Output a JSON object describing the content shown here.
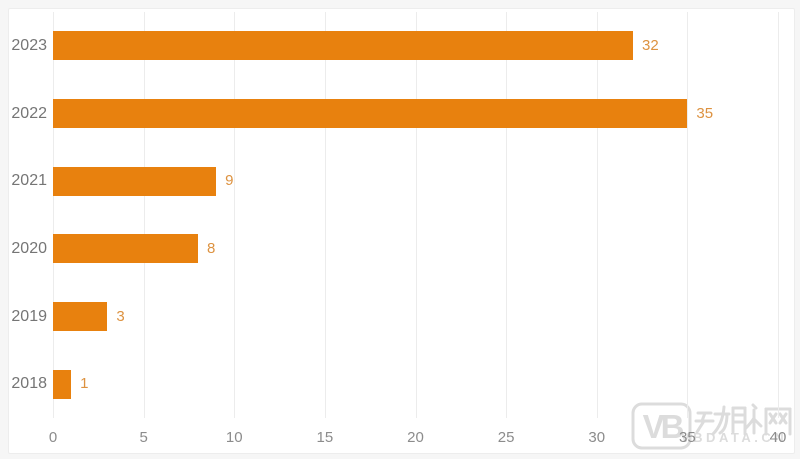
{
  "chart_data": {
    "type": "bar",
    "orientation": "horizontal",
    "title": "",
    "categories": [
      "2023",
      "2022",
      "2021",
      "2020",
      "2019",
      "2018"
    ],
    "values": [
      32,
      35,
      9,
      8,
      3,
      1
    ],
    "xlabel": "",
    "ylabel": "",
    "xlim": [
      0,
      40
    ],
    "xticks": [
      "0",
      "5",
      "10",
      "15",
      "20",
      "25",
      "30",
      "35",
      "40"
    ],
    "grid": true,
    "legend": false,
    "bar_color": "#e8810e",
    "value_label_color": "#dd9240",
    "category_label_color": "#757575",
    "tick_label_color": "#8c8c8c",
    "gridline_color": "#ececec",
    "background_color": "#ffffff"
  },
  "watermark": {
    "logo_text": "VB",
    "cn_text": "动脉网",
    "latin_text": "VBDATA.CN",
    "color": "#dcdcdc"
  }
}
